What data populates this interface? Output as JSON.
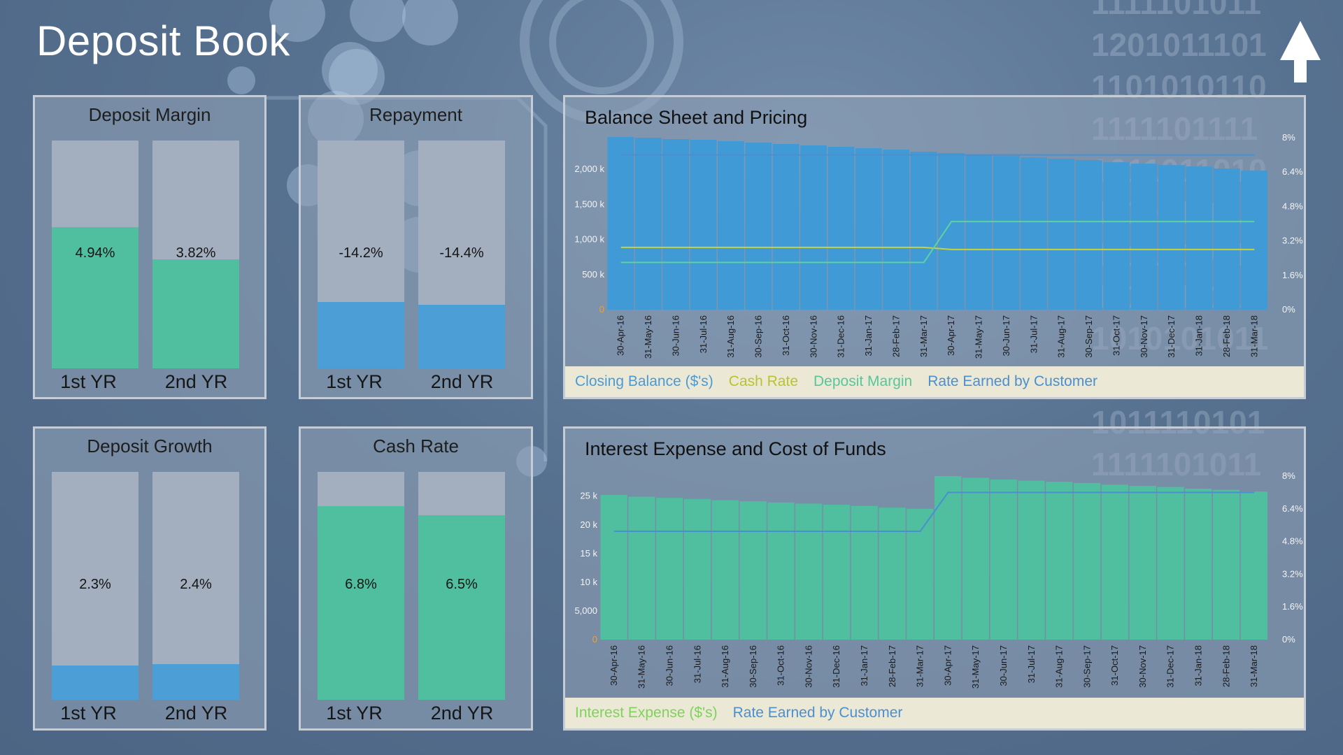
{
  "page": {
    "title": "Deposit Book"
  },
  "kpis": [
    {
      "title": "Deposit Margin",
      "bars": [
        {
          "label": "1st YR",
          "value_text": "4.94%",
          "fill": 0.62,
          "color": "#4fbf9f"
        },
        {
          "label": "2nd YR",
          "value_text": "3.82%",
          "fill": 0.48,
          "color": "#4fbf9f"
        }
      ]
    },
    {
      "title": "Repayment",
      "bars": [
        {
          "label": "1st YR",
          "value_text": "-14.2%",
          "fill": 0.29,
          "color": "#4c9fd6"
        },
        {
          "label": "2nd YR",
          "value_text": "-14.4%",
          "fill": 0.28,
          "color": "#4c9fd6"
        }
      ]
    },
    {
      "title": "Deposit Growth",
      "bars": [
        {
          "label": "1st YR",
          "value_text": "2.3%",
          "fill": 0.15,
          "color": "#4c9fd6"
        },
        {
          "label": "2nd YR",
          "value_text": "2.4%",
          "fill": 0.155,
          "color": "#4c9fd6"
        }
      ]
    },
    {
      "title": "Cash Rate",
      "bars": [
        {
          "label": "1st YR",
          "value_text": "6.8%",
          "fill": 0.85,
          "color": "#4fbf9f"
        },
        {
          "label": "2nd YR",
          "value_text": "6.5%",
          "fill": 0.81,
          "color": "#4fbf9f"
        }
      ]
    }
  ],
  "chart_data": [
    {
      "type": "bar",
      "title": "Balance Sheet and Pricing",
      "categories": [
        "30-Apr-16",
        "31-May-16",
        "30-Jun-16",
        "31-Jul-16",
        "31-Aug-16",
        "30-Sep-16",
        "31-Oct-16",
        "30-Nov-16",
        "31-Dec-16",
        "31-Jan-17",
        "28-Feb-17",
        "31-Mar-17",
        "30-Apr-17",
        "31-May-17",
        "30-Jun-17",
        "31-Jul-17",
        "31-Aug-17",
        "30-Sep-17",
        "31-Oct-17",
        "30-Nov-17",
        "31-Dec-17",
        "31-Jan-18",
        "28-Feb-18",
        "31-Mar-18"
      ],
      "series": [
        {
          "name": "Closing Balance ($'s)",
          "kind": "bar",
          "axis": "left",
          "color": "#3f9ad6",
          "values": [
            2460,
            2450,
            2430,
            2420,
            2400,
            2380,
            2360,
            2340,
            2320,
            2300,
            2280,
            2250,
            2230,
            2210,
            2190,
            2170,
            2150,
            2130,
            2100,
            2080,
            2060,
            2040,
            2010,
            1980
          ]
        },
        {
          "name": "Cash Rate",
          "kind": "line",
          "axis": "right",
          "color": "#c8d23a",
          "values": [
            2.9,
            2.9,
            2.9,
            2.9,
            2.9,
            2.9,
            2.9,
            2.9,
            2.9,
            2.9,
            2.9,
            2.9,
            2.8,
            2.8,
            2.8,
            2.8,
            2.8,
            2.8,
            2.8,
            2.8,
            2.8,
            2.8,
            2.8,
            2.8
          ]
        },
        {
          "name": "Deposit Margin",
          "kind": "line",
          "axis": "right",
          "color": "#5ed1a3",
          "values": [
            2.2,
            2.2,
            2.2,
            2.2,
            2.2,
            2.2,
            2.2,
            2.2,
            2.2,
            2.2,
            2.2,
            2.2,
            4.1,
            4.1,
            4.1,
            4.1,
            4.1,
            4.1,
            4.1,
            4.1,
            4.1,
            4.1,
            4.1,
            4.1
          ]
        },
        {
          "name": "Rate Earned by Customer",
          "kind": "line",
          "axis": "right",
          "color": "#4a8fd0",
          "values": [
            7.2,
            7.2,
            7.2,
            7.2,
            7.2,
            7.2,
            7.2,
            7.2,
            7.2,
            7.2,
            7.2,
            7.2,
            7.2,
            7.2,
            7.2,
            7.2,
            7.2,
            7.2,
            7.2,
            7.2,
            7.2,
            7.2,
            7.2,
            7.2
          ]
        }
      ],
      "left_axis": {
        "ticks": [
          "0",
          "500 k",
          "1,000 k",
          "1,500 k",
          "2,000 k"
        ],
        "ylim": [
          0,
          2450
        ]
      },
      "right_axis": {
        "ticks": [
          "0%",
          "1.6%",
          "3.2%",
          "4.8%",
          "6.4%",
          "8%"
        ],
        "ylim": [
          0,
          8
        ]
      },
      "legend_position": "bottom",
      "legend_colors": [
        "#4a9ad6",
        "#b8c42e",
        "#55c79a",
        "#4a8fd0"
      ]
    },
    {
      "type": "bar",
      "title": "Interest Expense and Cost of Funds",
      "categories": [
        "30-Apr-16",
        "31-May-16",
        "30-Jun-16",
        "31-Jul-16",
        "31-Aug-16",
        "30-Sep-16",
        "31-Oct-16",
        "30-Nov-16",
        "31-Dec-16",
        "31-Jan-17",
        "28-Feb-17",
        "31-Mar-17",
        "30-Apr-17",
        "31-May-17",
        "30-Jun-17",
        "31-Jul-17",
        "31-Aug-17",
        "30-Sep-17",
        "31-Oct-17",
        "30-Nov-17",
        "31-Dec-17",
        "31-Jan-18",
        "28-Feb-18",
        "31-Mar-18"
      ],
      "series": [
        {
          "name": "Interest Expense ($'s)",
          "kind": "bar",
          "axis": "left",
          "color": "#4fbf9f",
          "values": [
            25200,
            24900,
            24700,
            24500,
            24300,
            24100,
            23900,
            23700,
            23500,
            23300,
            23000,
            22800,
            28500,
            28200,
            27900,
            27700,
            27500,
            27300,
            27000,
            26800,
            26600,
            26300,
            26100,
            25800
          ]
        },
        {
          "name": "Rate Earned by Customer",
          "kind": "line",
          "axis": "right",
          "color": "#4a8fd0",
          "values": [
            5.3,
            5.3,
            5.3,
            5.3,
            5.3,
            5.3,
            5.3,
            5.3,
            5.3,
            5.3,
            5.3,
            5.3,
            7.2,
            7.2,
            7.2,
            7.2,
            7.2,
            7.2,
            7.2,
            7.2,
            7.2,
            7.2,
            7.2,
            7.2
          ]
        }
      ],
      "left_axis": {
        "ticks": [
          "0",
          "5,000",
          "10 k",
          "15 k",
          "20 k",
          "25 k"
        ],
        "ylim": [
          0,
          28500
        ]
      },
      "right_axis": {
        "ticks": [
          "0%",
          "1.6%",
          "3.2%",
          "4.8%",
          "6.4%",
          "8%"
        ],
        "ylim": [
          0,
          8
        ]
      },
      "legend_position": "bottom",
      "legend_colors": [
        "#7dd35a",
        "#4a8fd0"
      ]
    }
  ]
}
